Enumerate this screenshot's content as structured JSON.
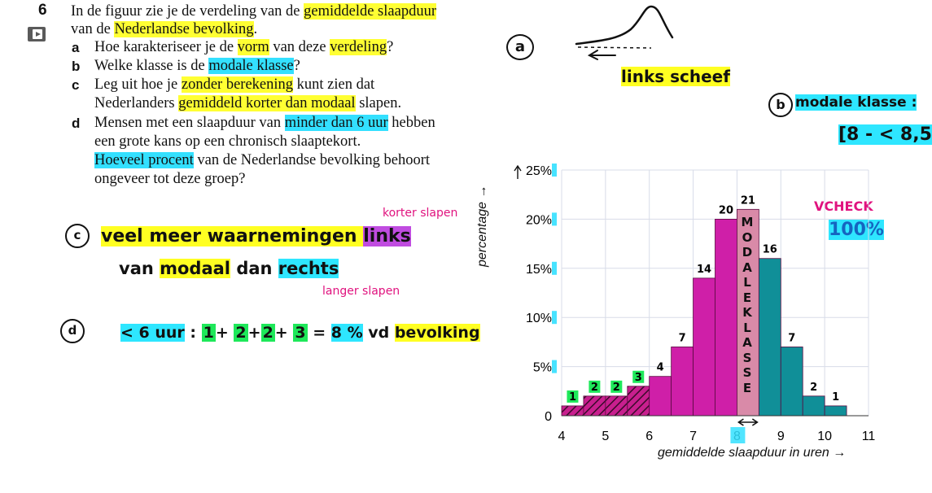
{
  "question": {
    "number": "6",
    "intro_line1": [
      "In de figuur zie je de verdeling van de ",
      "gemiddelde slaapduur"
    ],
    "intro_line2": [
      "van de ",
      "Nederlandse bevolking",
      "."
    ],
    "a": {
      "letter": "a",
      "parts": [
        "Hoe karakteriseer je de ",
        "vorm",
        " van deze ",
        "verdeling",
        "?"
      ]
    },
    "b": {
      "letter": "b",
      "parts": [
        "Welke klasse is de ",
        "modale klasse",
        "?"
      ]
    },
    "c": {
      "letter": "c",
      "line1": [
        "Leg uit hoe je ",
        "zonder berekening",
        " kunt zien dat"
      ],
      "line2": [
        "Nederlanders ",
        "gemiddeld korter dan modaal",
        " slapen."
      ]
    },
    "d": {
      "letter": "d",
      "line1": [
        "Mensen met een slaapduur van ",
        "minder dan 6 uur",
        " hebben"
      ],
      "line2": "een grote kans op een chronisch slaaptekort.",
      "line3": [
        "Hoeveel procent",
        " van de Nederlandse bevolking behoort"
      ],
      "line4": "ongeveer tot deze groep?"
    }
  },
  "notes": {
    "a_circle": "a",
    "a_answer": "links scheef",
    "b_circle": "b",
    "b_answer": "modale klasse :",
    "b_interval": "[8 - < 8,5",
    "c_circle": "c",
    "c_line1": [
      "veel meer waarnemingen ",
      "links"
    ],
    "c_line2": [
      "van ",
      "modaal",
      " dan ",
      "rechts"
    ],
    "c_above": "korter slapen",
    "c_below": "langer slapen",
    "d_circle": "d",
    "d_line": [
      "< 6 uur",
      " : ",
      "1",
      "+ ",
      "2",
      "+",
      "2",
      "+ ",
      "3",
      " = ",
      "8 %",
      " vd ",
      "bevolking"
    ],
    "check": "VCHECK",
    "check_total": "100%",
    "modal_vertical": "MODALE KLASSE"
  },
  "colors": {
    "magenta": "#cf1fa8",
    "modal_pink": "#d98aa8",
    "teal": "#108f98",
    "hatch_fill": "#c81f8e",
    "highlight_yellow": "#ffff33",
    "highlight_cyan": "#33e0ff",
    "highlight_green": "#1ee85a"
  },
  "chart_data": {
    "type": "bar",
    "bin_edges": [
      4,
      4.5,
      5,
      5.5,
      6,
      6.5,
      7,
      7.5,
      8,
      8.5,
      9,
      9.5,
      10,
      10.5
    ],
    "values": [
      1,
      2,
      2,
      3,
      4,
      7,
      14,
      20,
      21,
      16,
      7,
      2,
      1
    ],
    "value_labels": [
      "1",
      "2",
      "2",
      "3",
      "4",
      "7",
      "14",
      "20",
      "21",
      "16",
      "7",
      "2",
      "1"
    ],
    "xlim": [
      4,
      11
    ],
    "ylim": [
      0,
      25
    ],
    "x_ticks": [
      "4",
      "5",
      "6",
      "7",
      "8",
      "9",
      "10",
      "11"
    ],
    "y_ticks": [
      "0",
      "5%",
      "10%",
      "15%",
      "20%",
      "25%"
    ],
    "xlabel": "gemiddelde slaapduur in uren →",
    "ylabel": "percentage →",
    "grid": true
  }
}
